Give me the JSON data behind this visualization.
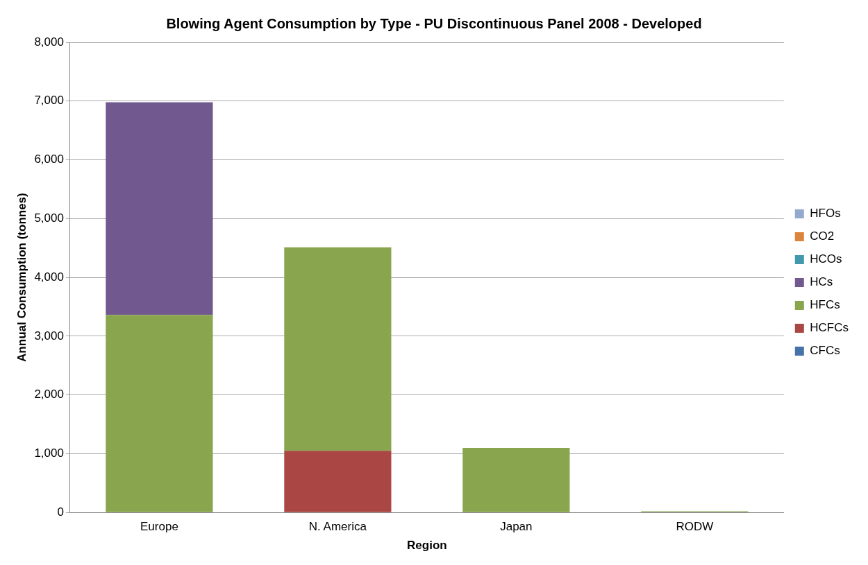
{
  "chart_data": {
    "type": "bar",
    "title": "Blowing Agent Consumption by Type - PU Discontinuous Panel 2008 - Developed",
    "xlabel": "Region",
    "ylabel": "Annual Consumption (tonnes)",
    "categories": [
      "Europe",
      "N. America",
      "Japan",
      "RODW"
    ],
    "stacked": true,
    "series": [
      {
        "name": "CFCs",
        "color": "#4572a7",
        "values": [
          0,
          0,
          0,
          0
        ]
      },
      {
        "name": "HCFCs",
        "color": "#aa4643",
        "values": [
          0,
          1050,
          0,
          0
        ]
      },
      {
        "name": "HFCs",
        "color": "#89a54e",
        "values": [
          3360,
          3460,
          1100,
          20
        ]
      },
      {
        "name": "HCs",
        "color": "#71588f",
        "values": [
          3620,
          0,
          0,
          0
        ]
      },
      {
        "name": "HCOs",
        "color": "#4198af",
        "values": [
          0,
          0,
          0,
          0
        ]
      },
      {
        "name": "CO2",
        "color": "#db843d",
        "values": [
          0,
          0,
          0,
          0
        ]
      },
      {
        "name": "HFOs",
        "color": "#93a9cf",
        "values": [
          0,
          0,
          0,
          0
        ]
      }
    ],
    "ylim": [
      0,
      8000
    ],
    "yticks": [
      0,
      {
        "value": 1000,
        "label": "1,000"
      },
      {
        "value": 2000,
        "label": "2,000"
      },
      {
        "value": 3000,
        "label": "3,000"
      },
      {
        "value": 4000,
        "label": "4,000"
      },
      {
        "value": 5000,
        "label": "5,000"
      },
      {
        "value": 6000,
        "label": "6,000"
      },
      {
        "value": 7000,
        "label": "7,000"
      },
      {
        "value": 8000,
        "label": "8,000"
      }
    ],
    "grid": "y",
    "legend": "right"
  }
}
